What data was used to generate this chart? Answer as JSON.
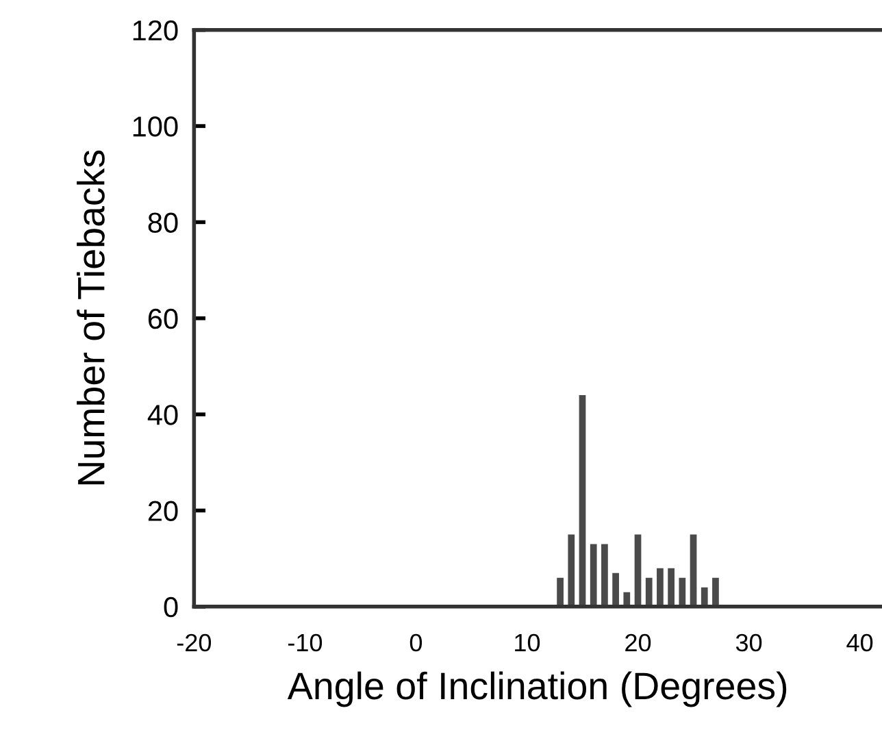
{
  "chart_data": {
    "type": "histogram",
    "xlabel": "Angle of Inclination (Degrees)",
    "ylabel": "Number of Tiebacks",
    "bins": [
      12.5,
      13.5,
      14.5,
      15.5,
      16.5,
      17.5,
      18.5,
      19.5,
      20.5,
      21.5,
      22.5,
      23.5,
      24.5,
      25.5,
      26.5,
      27.5
    ],
    "values": [
      6,
      15,
      44,
      13,
      13,
      7,
      3,
      15,
      6,
      8,
      8,
      6,
      15,
      4,
      6
    ],
    "color": "#4a4a4a",
    "xlim": [
      -20,
      42
    ],
    "xticks": [
      -20,
      -10,
      0,
      10,
      20,
      30,
      40
    ],
    "ylim": [
      0,
      120
    ],
    "yticks": [
      0,
      20,
      40,
      60,
      80,
      100,
      120
    ],
    "grid": false
  }
}
